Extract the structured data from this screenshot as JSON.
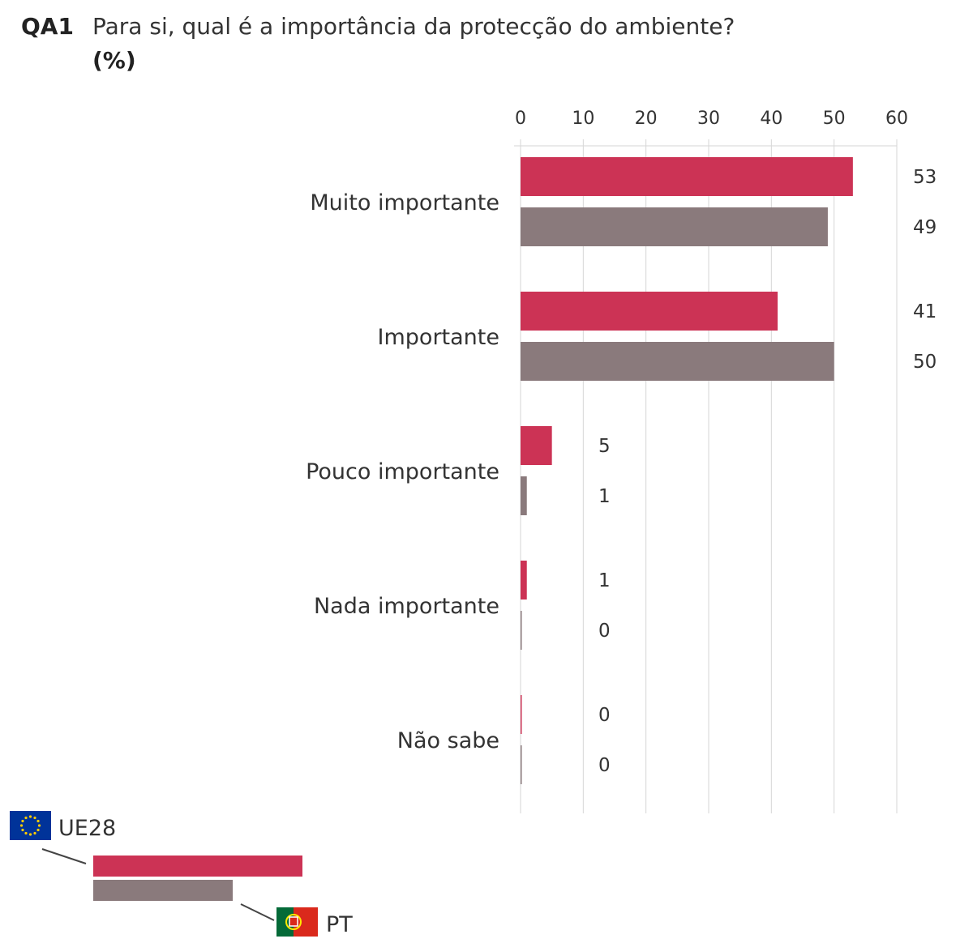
{
  "header": {
    "code": "QA1",
    "question": "Para si, qual é a importância da protecção do ambiente?",
    "unit": "(%)"
  },
  "colors": {
    "series_ue28": "#cc3355",
    "series_pt": "#8a7a7c",
    "grid": "#d6d6d6"
  },
  "chart_data": {
    "type": "bar",
    "orientation": "horizontal",
    "categories": [
      "Muito importante",
      "Importante",
      "Pouco importante",
      "Nada importante",
      "Não sabe"
    ],
    "series": [
      {
        "name": "UE28",
        "values": [
          53,
          41,
          5,
          1,
          0
        ]
      },
      {
        "name": "PT",
        "values": [
          49,
          50,
          1,
          0,
          0
        ]
      }
    ],
    "xlim": [
      0,
      60
    ],
    "xticks": [
      0,
      10,
      20,
      30,
      40,
      50,
      60
    ],
    "axis_position": "top",
    "grid": true,
    "legend": {
      "placement": "bottom-left",
      "icons": [
        "eu-flag-icon",
        "portugal-flag-icon"
      ]
    }
  }
}
